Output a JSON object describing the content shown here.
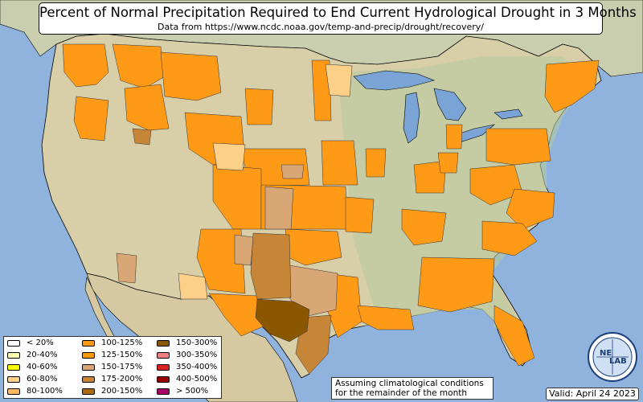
{
  "title": "Percent of Normal Precipitation Required to End Current Hydrological Drought in 3 Months",
  "subtitle": "Data from https://www.ncdc.noaa.gov/temp-and-precip/drought/recovery/",
  "legend": [
    {
      "label": "< 20%",
      "color": "#ffffff"
    },
    {
      "label": "20-40%",
      "color": "#fffbb0"
    },
    {
      "label": "40-60%",
      "color": "#ffff00"
    },
    {
      "label": "60-80%",
      "color": "#fcd089"
    },
    {
      "label": "80-100%",
      "color": "#fbb963"
    },
    {
      "label": "100-125%",
      "color": "#ff9a17"
    },
    {
      "label": "125-150%",
      "color": "#ff9900"
    },
    {
      "label": "150-175%",
      "color": "#d9a775"
    },
    {
      "label": "175-200%",
      "color": "#c78537"
    },
    {
      "label": "200-150%",
      "color": "#a96a10"
    },
    {
      "label": "150-300%",
      "color": "#8a5700"
    },
    {
      "label": "300-350%",
      "color": "#f08080"
    },
    {
      "label": "350-400%",
      "color": "#dd2222"
    },
    {
      "label": "400-500%",
      "color": "#990000"
    },
    {
      "label": "> 500%",
      "color": "#aa0066"
    }
  ],
  "note_line1": "Assuming climatological conditions",
  "note_line2": "for the remainder of the month",
  "valid": "Valid: April 24 2023",
  "logo_text_1": "NE",
  "logo_text_2": "LAB",
  "colors": {
    "ocean": "#8fb3dd",
    "land": "#d8cfa8",
    "land_green": "#b9c9a0",
    "lakes": "#7aa3d6"
  }
}
